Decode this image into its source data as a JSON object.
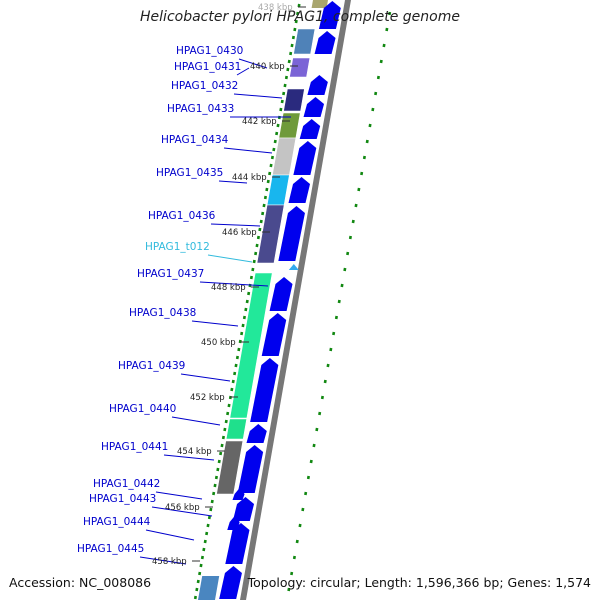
{
  "title": "Helicobacter pylori HPAG1, complete genome",
  "footer": {
    "accession": "Accession: NC_008086",
    "summary": "Topology: circular; Length: 1,596,366 bp; Genes: 1,574"
  },
  "colors": {
    "gene_label": "#0000cc",
    "trna_label": "#33bbdd",
    "forward_arrow": "#0000ee",
    "backbone": "#777777",
    "dots": "#118811",
    "trna_marker": "#33aaee"
  },
  "scale_labels": [
    "438 kbp",
    "440 kbp",
    "442 kbp",
    "444 kbp",
    "446 kbp",
    "448 kbp",
    "450 kbp",
    "452 kbp",
    "454 kbp",
    "456 kbp",
    "458 kbp"
  ],
  "features": [
    {
      "name": "HPAG1_0430",
      "type": "gene",
      "color": "#4f82b8"
    },
    {
      "name": "HPAG1_0431",
      "type": "gene",
      "color": "#7b64d6"
    },
    {
      "name": "HPAG1_0432",
      "type": "gene",
      "color": "#2a2a7e"
    },
    {
      "name": "HPAG1_0433",
      "type": "gene",
      "color": "#6f9a3a"
    },
    {
      "name": "HPAG1_0434",
      "type": "gene",
      "color": "#c4c4c4"
    },
    {
      "name": "HPAG1_0435",
      "type": "gene",
      "color": "#18b6ee"
    },
    {
      "name": "HPAG1_0436",
      "type": "gene",
      "color": "#4a4a8e"
    },
    {
      "name": "HPAG1_t012",
      "type": "tRNA",
      "color": "#33aaee"
    },
    {
      "name": "HPAG1_0437",
      "type": "gene",
      "color": "#22e89a"
    },
    {
      "name": "HPAG1_0438",
      "type": "gene",
      "color": "#22e89a"
    },
    {
      "name": "HPAG1_0439",
      "type": "gene",
      "color": "#22e89a"
    },
    {
      "name": "HPAG1_0440",
      "type": "gene",
      "color": "#1fe08c"
    },
    {
      "name": "HPAG1_0441",
      "type": "gene",
      "color": "#666666"
    },
    {
      "name": "HPAG1_0442",
      "type": "gene",
      "color": "#0000ee"
    },
    {
      "name": "HPAG1_0443",
      "type": "gene",
      "color": "#0000ee"
    },
    {
      "name": "HPAG1_0444",
      "type": "gene",
      "color": "#0000ee"
    },
    {
      "name": "HPAG1_0445",
      "type": "gene",
      "color": "#0000ee"
    }
  ]
}
